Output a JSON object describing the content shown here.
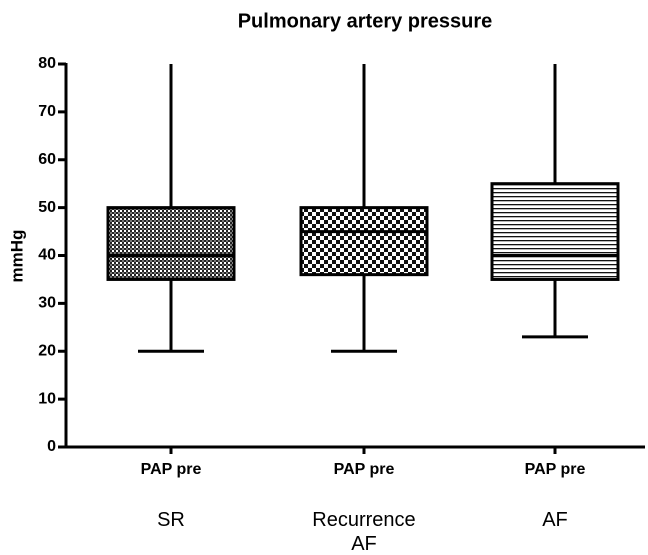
{
  "chart_data": {
    "type": "box",
    "title": "Pulmonary artery pressure",
    "ylabel": "mmHg",
    "categories": [
      "PAP pre",
      "PAP pre",
      "PAP pre"
    ],
    "groups": [
      "SR",
      "Recurrence AF",
      "AF"
    ],
    "boxes": [
      {
        "min": 20,
        "q1": 35,
        "median": 40,
        "q3": 50,
        "max": 80
      },
      {
        "min": 20,
        "q1": 36,
        "median": 45,
        "q3": 50,
        "max": 80
      },
      {
        "min": 23,
        "q1": 35,
        "median": 40,
        "q3": 55,
        "max": 80
      }
    ],
    "ylim": [
      0,
      80
    ],
    "yticks": [
      0,
      10,
      20,
      30,
      40,
      50,
      60,
      70,
      80
    ]
  }
}
